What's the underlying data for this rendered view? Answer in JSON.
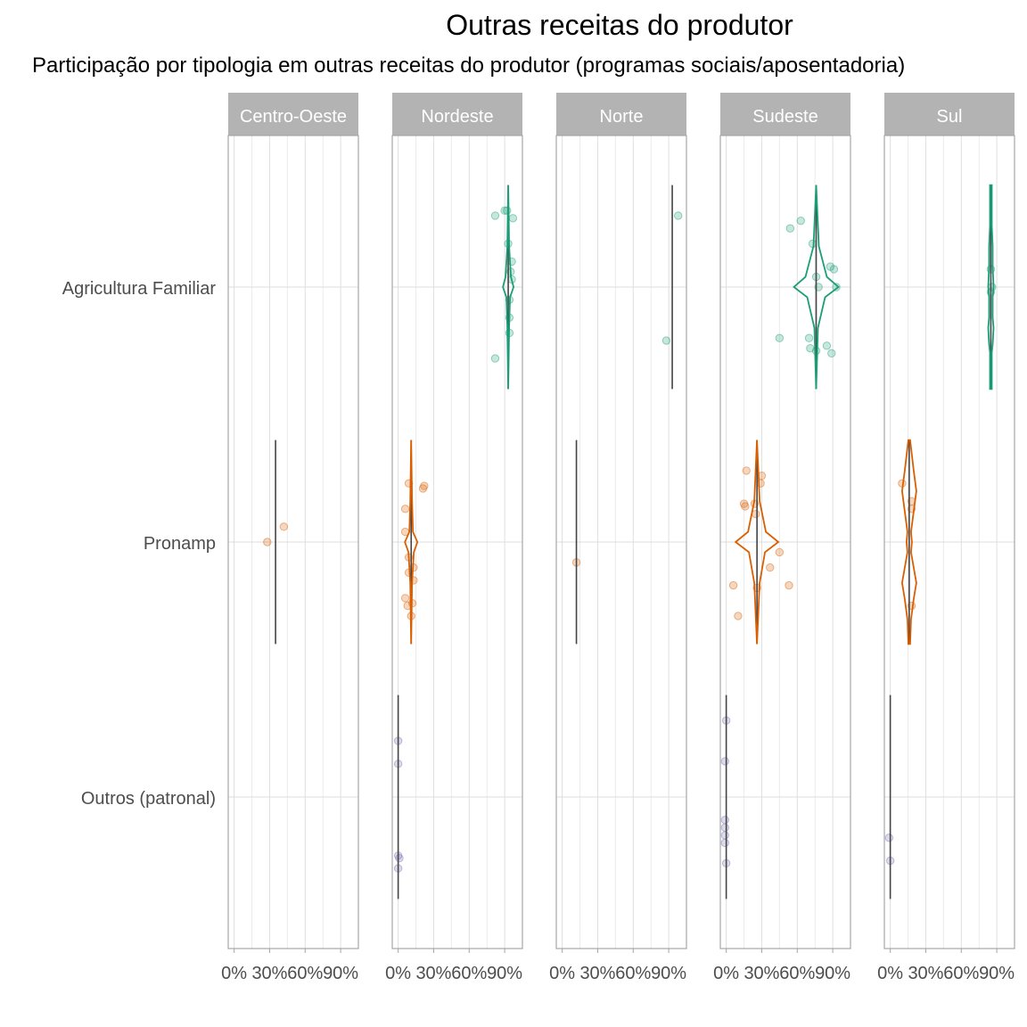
{
  "chart_data": {
    "type": "violin",
    "title": "Outras receitas do produtor",
    "subtitle": "Participação por tipologia em outras receitas do produtor (programas sociais/aposentadoria)",
    "xlabel": "",
    "ylabel": "",
    "x_ticks": [
      "0%",
      "30%",
      "60%",
      "90%"
    ],
    "xlim": [
      -5,
      105
    ],
    "categories": [
      "Agricultura Familiar",
      "Pronamp",
      "Outros (patronal)"
    ],
    "facets": [
      "Centro-Oeste",
      "Nordeste",
      "Norte",
      "Sudeste",
      "Sul"
    ],
    "colors": {
      "Agricultura Familiar": "#1b9e77",
      "Pronamp": "#d95f02",
      "Outros (patronal)": "#7570b3"
    },
    "panels": [
      {
        "facet": "Centro-Oeste",
        "groups": [
          {
            "category": "Pronamp",
            "center": 35,
            "show_violin": false,
            "points": [
              [
                28,
                0
              ],
              [
                42,
                0.06
              ]
            ]
          }
        ]
      },
      {
        "facet": "Nordeste",
        "groups": [
          {
            "category": "Agricultura Familiar",
            "center": 93,
            "show_violin": true,
            "violin": [
              [
                0,
                0
              ],
              [
                0.3,
                1
              ],
              [
                0.45,
                2
              ],
              [
                0.5,
                6
              ],
              [
                0.55,
                3
              ],
              [
                0.7,
                1
              ],
              [
                1,
                0
              ]
            ],
            "points": [
              [
                82,
                0.28
              ],
              [
                90,
                0.3
              ],
              [
                92,
                0.3
              ],
              [
                97,
                0.27
              ],
              [
                93,
                0.17
              ],
              [
                96,
                0.1
              ],
              [
                95,
                0.06
              ],
              [
                96,
                0.03
              ],
              [
                94,
                -0.05
              ],
              [
                94,
                -0.12
              ],
              [
                94,
                -0.18
              ],
              [
                82,
                -0.28
              ]
            ]
          },
          {
            "category": "Pronamp",
            "center": 11,
            "show_violin": true,
            "violin": [
              [
                0,
                0
              ],
              [
                0.3,
                1
              ],
              [
                0.45,
                3
              ],
              [
                0.5,
                7
              ],
              [
                0.55,
                2
              ],
              [
                0.7,
                1
              ],
              [
                1,
                0
              ]
            ],
            "points": [
              [
                9,
                0.23
              ],
              [
                22,
                0.22
              ],
              [
                21,
                0.21
              ],
              [
                6,
                0.13
              ],
              [
                6,
                0.04
              ],
              [
                9,
                -0.06
              ],
              [
                13,
                -0.1
              ],
              [
                9,
                -0.12
              ],
              [
                13,
                -0.15
              ],
              [
                6,
                -0.22
              ],
              [
                8,
                -0.25
              ],
              [
                12,
                -0.24
              ],
              [
                11,
                -0.29
              ]
            ]
          },
          {
            "category": "Outros (patronal)",
            "center": 0,
            "show_violin": false,
            "points": [
              [
                0,
                0.22
              ],
              [
                0,
                0.13
              ],
              [
                0,
                -0.23
              ],
              [
                1,
                -0.24
              ],
              [
                0,
                -0.28
              ]
            ]
          }
        ]
      },
      {
        "facet": "Norte",
        "groups": [
          {
            "category": "Agricultura Familiar",
            "center": 93,
            "show_violin": false,
            "points": [
              [
                98,
                0.28
              ],
              [
                88,
                -0.21
              ]
            ]
          },
          {
            "category": "Pronamp",
            "center": 12,
            "show_violin": false,
            "points": [
              [
                12,
                -0.08
              ]
            ]
          }
        ]
      },
      {
        "facet": "Sudeste",
        "groups": [
          {
            "category": "Agricultura Familiar",
            "center": 76,
            "show_violin": true,
            "violin": [
              [
                0,
                0
              ],
              [
                0.3,
                2
              ],
              [
                0.45,
                10
              ],
              [
                0.5,
                25
              ],
              [
                0.55,
                12
              ],
              [
                0.7,
                3
              ],
              [
                1,
                0
              ]
            ],
            "points": [
              [
                63,
                0.26
              ],
              [
                54,
                0.23
              ],
              [
                73,
                0.17
              ],
              [
                88,
                0.08
              ],
              [
                91,
                0.07
              ],
              [
                76,
                0.04
              ],
              [
                78,
                0.0
              ],
              [
                93,
                0.0
              ],
              [
                45,
                -0.2
              ],
              [
                70,
                -0.2
              ],
              [
                85,
                -0.23
              ],
              [
                71,
                -0.24
              ],
              [
                76,
                -0.25
              ],
              [
                89,
                -0.26
              ]
            ]
          },
          {
            "category": "Pronamp",
            "center": 26,
            "show_violin": true,
            "violin": [
              [
                0,
                0
              ],
              [
                0.3,
                3
              ],
              [
                0.45,
                9
              ],
              [
                0.5,
                24
              ],
              [
                0.55,
                10
              ],
              [
                0.7,
                3
              ],
              [
                1,
                0
              ]
            ],
            "points": [
              [
                17,
                0.28
              ],
              [
                30,
                0.26
              ],
              [
                29,
                0.23
              ],
              [
                15,
                0.15
              ],
              [
                16,
                0.14
              ],
              [
                24,
                0.15
              ],
              [
                25,
                0.11
              ],
              [
                45,
                -0.04
              ],
              [
                37,
                -0.1
              ],
              [
                6,
                -0.17
              ],
              [
                26,
                -0.18
              ],
              [
                53,
                -0.17
              ],
              [
                10,
                -0.29
              ]
            ]
          },
          {
            "category": "Outros (patronal)",
            "center": 0,
            "show_violin": false,
            "points": [
              [
                0,
                0.3
              ],
              [
                -1,
                0.14
              ],
              [
                -1,
                -0.09
              ],
              [
                -1,
                -0.12
              ],
              [
                -1,
                -0.15
              ],
              [
                -1,
                -0.18
              ],
              [
                0,
                -0.26
              ]
            ]
          }
        ]
      },
      {
        "facet": "Sul",
        "groups": [
          {
            "category": "Agricultura Familiar",
            "center": 85,
            "show_violin": true,
            "violin": [
              [
                0,
                1
              ],
              [
                0.18,
                1
              ],
              [
                0.22,
                2
              ],
              [
                0.3,
                3
              ],
              [
                0.35,
                2
              ],
              [
                0.45,
                2
              ],
              [
                0.5,
                3
              ],
              [
                0.6,
                2
              ],
              [
                0.7,
                2
              ],
              [
                0.8,
                1
              ],
              [
                1,
                1
              ]
            ],
            "points": [
              [
                85,
                0.07
              ],
              [
                86,
                0.0
              ],
              [
                85,
                -0.02
              ]
            ]
          },
          {
            "category": "Pronamp",
            "center": 16,
            "show_violin": true,
            "violin": [
              [
                0,
                1
              ],
              [
                0.12,
                2
              ],
              [
                0.22,
                5
              ],
              [
                0.3,
                8
              ],
              [
                0.4,
                4
              ],
              [
                0.45,
                2
              ],
              [
                0.5,
                3
              ],
              [
                0.55,
                2
              ],
              [
                0.65,
                5
              ],
              [
                0.75,
                8
              ],
              [
                0.85,
                5
              ],
              [
                1,
                1
              ]
            ],
            "points": [
              [
                10,
                0.23
              ],
              [
                18,
                0.16
              ],
              [
                18,
                0.13
              ],
              [
                18,
                -0.25
              ]
            ]
          },
          {
            "category": "Outros (patronal)",
            "center": 0,
            "show_violin": false,
            "points": [
              [
                -1,
                -0.16
              ],
              [
                0,
                -0.25
              ]
            ]
          }
        ]
      }
    ]
  }
}
